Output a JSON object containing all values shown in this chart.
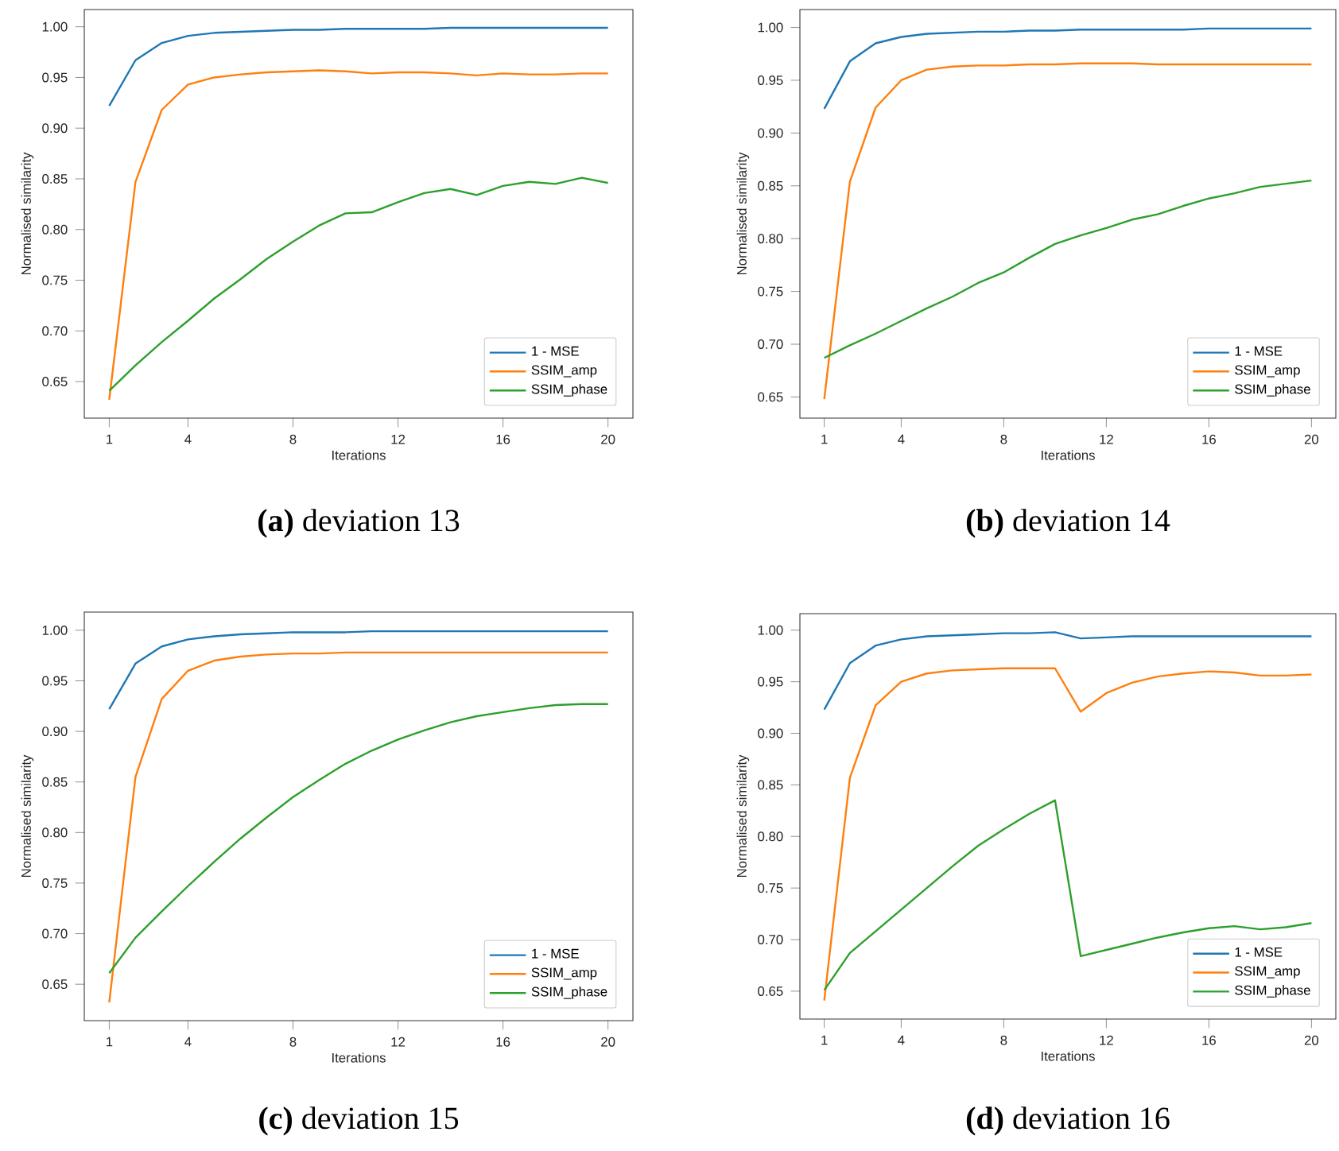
{
  "chart_data": [
    {
      "type": "line",
      "title": "**(a)** deviation 13",
      "xlabel": "Iterations",
      "ylabel": "Normalised similarity",
      "x": [
        1,
        2,
        3,
        4,
        5,
        6,
        7,
        8,
        9,
        10,
        11,
        12,
        13,
        14,
        15,
        16,
        17,
        18,
        19,
        20
      ],
      "xlim": [
        0.05,
        20.95
      ],
      "xticks": [
        1,
        4,
        8,
        12,
        16,
        20
      ],
      "ylim": [
        0.614,
        1.017
      ],
      "yticks": [
        {
          "value": 0.65,
          "label": "0.65"
        },
        {
          "value": 0.7,
          "label": "0.70"
        },
        {
          "value": 0.75,
          "label": "0.75"
        },
        {
          "value": 0.8,
          "label": "0.80"
        },
        {
          "value": 0.85,
          "label": "0.85"
        },
        {
          "value": 0.9,
          "label": "0.90"
        },
        {
          "value": 0.95,
          "label": "0.95"
        },
        {
          "value": 1,
          "label": "1.00"
        }
      ],
      "legend": "bottom right",
      "series": [
        {
          "name": "1 - MSE",
          "color": "#1f77b4",
          "values": [
            0.922,
            0.967,
            0.984,
            0.991,
            0.994,
            0.995,
            0.996,
            0.997,
            0.997,
            0.998,
            0.998,
            0.998,
            0.998,
            0.999,
            0.999,
            0.999,
            0.999,
            0.999,
            0.999,
            0.999
          ]
        },
        {
          "name": "SSIM_amp",
          "color": "#ff7f0e",
          "values": [
            0.632,
            0.847,
            0.918,
            0.943,
            0.95,
            0.953,
            0.955,
            0.956,
            0.957,
            0.956,
            0.954,
            0.955,
            0.955,
            0.954,
            0.952,
            0.954,
            0.953,
            0.953,
            0.954,
            0.954
          ]
        },
        {
          "name": "SSIM_phase",
          "color": "#2ca02c",
          "values": [
            0.641,
            0.666,
            0.689,
            0.71,
            0.732,
            0.751,
            0.771,
            0.788,
            0.804,
            0.816,
            0.817,
            0.827,
            0.836,
            0.84,
            0.834,
            0.843,
            0.847,
            0.845,
            0.851,
            0.846
          ]
        }
      ]
    },
    {
      "type": "line",
      "title": "**(b)** deviation 14",
      "xlabel": "Iterations",
      "ylabel": "Normalised similarity",
      "x": [
        1,
        2,
        3,
        4,
        5,
        6,
        7,
        8,
        9,
        10,
        11,
        12,
        13,
        14,
        15,
        16,
        17,
        18,
        19,
        20
      ],
      "xlim": [
        0.05,
        20.95
      ],
      "xticks": [
        1,
        4,
        8,
        12,
        16,
        20
      ],
      "ylim": [
        0.63,
        1.017
      ],
      "yticks": [
        {
          "value": 0.65,
          "label": "0.65"
        },
        {
          "value": 0.7,
          "label": "0.70"
        },
        {
          "value": 0.75,
          "label": "0.75"
        },
        {
          "value": 0.8,
          "label": "0.80"
        },
        {
          "value": 0.85,
          "label": "0.85"
        },
        {
          "value": 0.9,
          "label": "0.90"
        },
        {
          "value": 0.95,
          "label": "0.95"
        },
        {
          "value": 1,
          "label": "1.00"
        }
      ],
      "legend": "bottom right",
      "series": [
        {
          "name": "1 - MSE",
          "color": "#1f77b4",
          "values": [
            0.923,
            0.968,
            0.985,
            0.991,
            0.994,
            0.995,
            0.996,
            0.996,
            0.997,
            0.997,
            0.998,
            0.998,
            0.998,
            0.998,
            0.998,
            0.999,
            0.999,
            0.999,
            0.999,
            0.999
          ]
        },
        {
          "name": "SSIM_amp",
          "color": "#ff7f0e",
          "values": [
            0.648,
            0.854,
            0.924,
            0.95,
            0.96,
            0.963,
            0.964,
            0.964,
            0.965,
            0.965,
            0.966,
            0.966,
            0.966,
            0.965,
            0.965,
            0.965,
            0.965,
            0.965,
            0.965,
            0.965
          ]
        },
        {
          "name": "SSIM_phase",
          "color": "#2ca02c",
          "values": [
            0.687,
            0.699,
            0.71,
            0.722,
            0.734,
            0.745,
            0.758,
            0.768,
            0.782,
            0.795,
            0.803,
            0.81,
            0.818,
            0.823,
            0.831,
            0.838,
            0.843,
            0.849,
            0.852,
            0.855
          ]
        }
      ]
    },
    {
      "type": "line",
      "title": "**(c)** deviation 15",
      "xlabel": "Iterations",
      "ylabel": "Normalised similarity",
      "x": [
        1,
        2,
        3,
        4,
        5,
        6,
        7,
        8,
        9,
        10,
        11,
        12,
        13,
        14,
        15,
        16,
        17,
        18,
        19,
        20
      ],
      "xlim": [
        0.05,
        20.95
      ],
      "xticks": [
        1,
        4,
        8,
        12,
        16,
        20
      ],
      "ylim": [
        0.614,
        1.018
      ],
      "yticks": [
        {
          "value": 0.65,
          "label": "0.65"
        },
        {
          "value": 0.7,
          "label": "0.70"
        },
        {
          "value": 0.75,
          "label": "0.75"
        },
        {
          "value": 0.8,
          "label": "0.80"
        },
        {
          "value": 0.85,
          "label": "0.85"
        },
        {
          "value": 0.9,
          "label": "0.90"
        },
        {
          "value": 0.95,
          "label": "0.95"
        },
        {
          "value": 1,
          "label": "1.00"
        }
      ],
      "legend": "bottom right",
      "series": [
        {
          "name": "1 - MSE",
          "color": "#1f77b4",
          "values": [
            0.922,
            0.967,
            0.984,
            0.991,
            0.994,
            0.996,
            0.997,
            0.998,
            0.998,
            0.998,
            0.999,
            0.999,
            0.999,
            0.999,
            0.999,
            0.999,
            0.999,
            0.999,
            0.999,
            0.999
          ]
        },
        {
          "name": "SSIM_amp",
          "color": "#ff7f0e",
          "values": [
            0.632,
            0.855,
            0.932,
            0.96,
            0.97,
            0.974,
            0.976,
            0.977,
            0.977,
            0.978,
            0.978,
            0.978,
            0.978,
            0.978,
            0.978,
            0.978,
            0.978,
            0.978,
            0.978,
            0.978
          ]
        },
        {
          "name": "SSIM_phase",
          "color": "#2ca02c",
          "values": [
            0.661,
            0.696,
            0.722,
            0.747,
            0.771,
            0.794,
            0.815,
            0.835,
            0.852,
            0.868,
            0.881,
            0.892,
            0.901,
            0.909,
            0.915,
            0.919,
            0.923,
            0.926,
            0.927,
            0.927
          ]
        }
      ]
    },
    {
      "type": "line",
      "title": "**(d)** deviation 16",
      "xlabel": "Iterations",
      "ylabel": "Normalised similarity",
      "x": [
        1,
        2,
        3,
        4,
        5,
        6,
        7,
        8,
        9,
        10,
        11,
        12,
        13,
        14,
        15,
        16,
        17,
        18,
        19,
        20
      ],
      "xlim": [
        0.05,
        20.95
      ],
      "xticks": [
        1,
        4,
        8,
        12,
        16,
        20
      ],
      "ylim": [
        0.623,
        1.016
      ],
      "yticks": [
        {
          "value": 0.65,
          "label": "0.65"
        },
        {
          "value": 0.7,
          "label": "0.70"
        },
        {
          "value": 0.75,
          "label": "0.75"
        },
        {
          "value": 0.8,
          "label": "0.80"
        },
        {
          "value": 0.85,
          "label": "0.85"
        },
        {
          "value": 0.9,
          "label": "0.90"
        },
        {
          "value": 0.95,
          "label": "0.95"
        },
        {
          "value": 1,
          "label": "1.00"
        }
      ],
      "legend": "bottom right",
      "series": [
        {
          "name": "1 - MSE",
          "color": "#1f77b4",
          "values": [
            0.923,
            0.968,
            0.985,
            0.991,
            0.994,
            0.995,
            0.996,
            0.997,
            0.997,
            0.998,
            0.992,
            0.993,
            0.994,
            0.994,
            0.994,
            0.994,
            0.994,
            0.994,
            0.994,
            0.994
          ]
        },
        {
          "name": "SSIM_amp",
          "color": "#ff7f0e",
          "values": [
            0.641,
            0.857,
            0.927,
            0.95,
            0.958,
            0.961,
            0.962,
            0.963,
            0.963,
            0.963,
            0.921,
            0.939,
            0.949,
            0.955,
            0.958,
            0.96,
            0.959,
            0.956,
            0.956,
            0.957
          ]
        },
        {
          "name": "SSIM_phase",
          "color": "#2ca02c",
          "values": [
            0.651,
            0.687,
            0.708,
            0.729,
            0.75,
            0.771,
            0.791,
            0.807,
            0.822,
            0.835,
            0.684,
            0.69,
            0.696,
            0.702,
            0.707,
            0.711,
            0.713,
            0.71,
            0.712,
            0.716
          ]
        }
      ]
    }
  ]
}
